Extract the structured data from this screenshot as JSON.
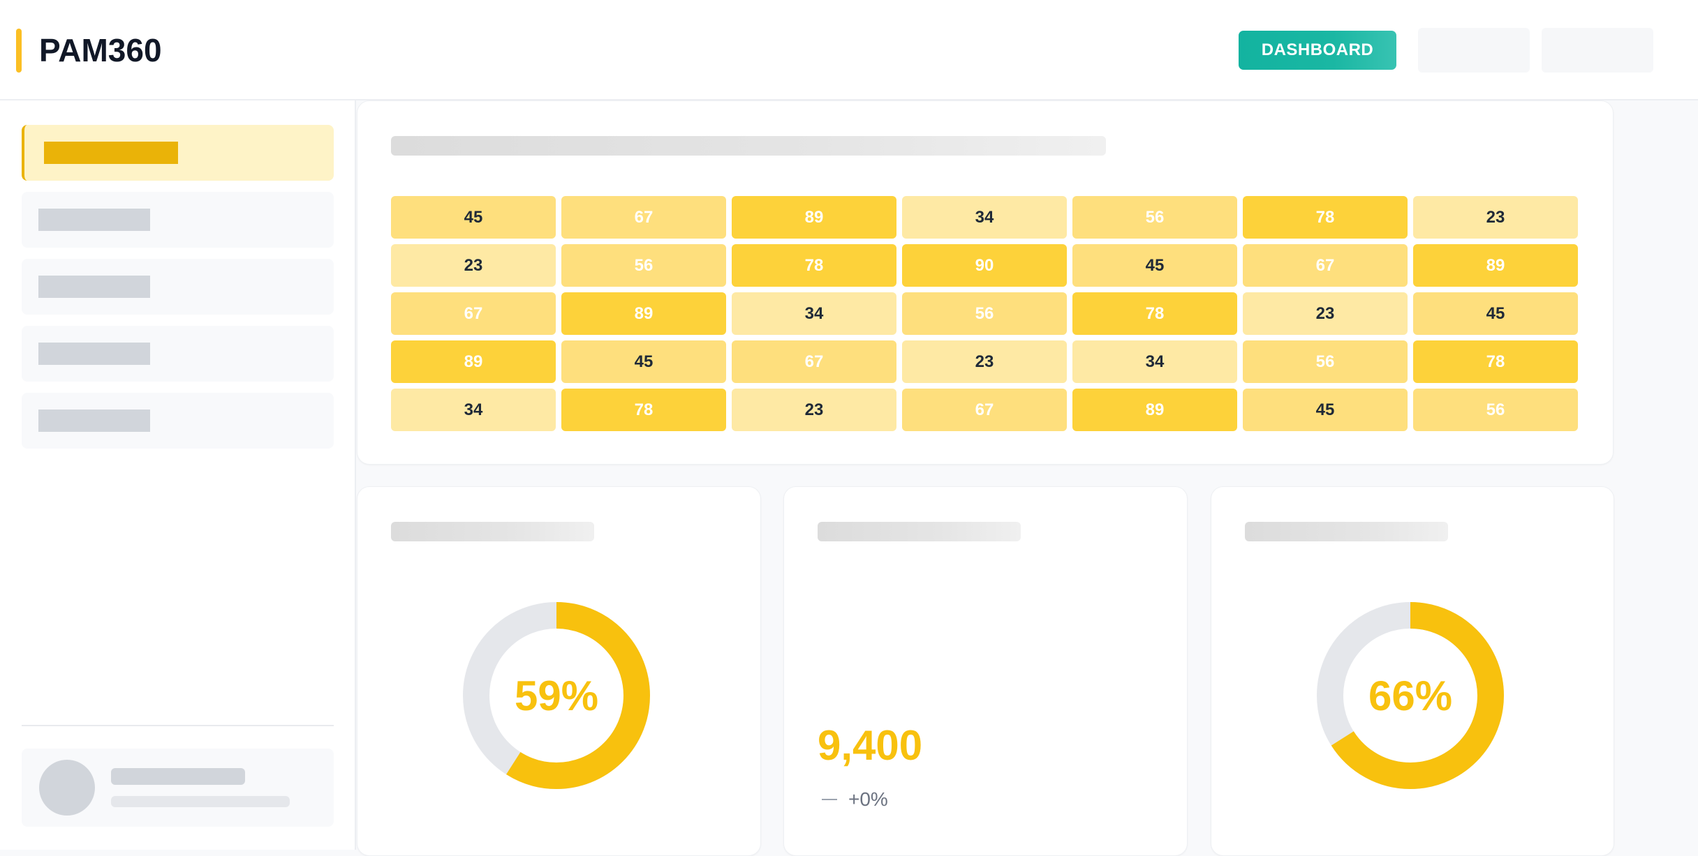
{
  "app": {
    "name": "PAM360",
    "brand_color": "#fbbf24"
  },
  "header": {
    "dashboard_label": "DASHBOARD"
  },
  "colors": {
    "accent": "#f8c10e",
    "heat_low": "#fee9a4",
    "heat_mid": "#fedf7d",
    "heat_high": "#fdd23a",
    "teal": "#13b3a0"
  },
  "heatmap": {
    "rows": [
      [
        45,
        67,
        89,
        34,
        56,
        78,
        23
      ],
      [
        23,
        56,
        78,
        90,
        45,
        67,
        89
      ],
      [
        67,
        89,
        34,
        56,
        78,
        23,
        45
      ],
      [
        89,
        45,
        67,
        23,
        34,
        56,
        78
      ],
      [
        34,
        78,
        23,
        67,
        89,
        45,
        56
      ]
    ]
  },
  "gauges": [
    {
      "label": "59%",
      "value": 0.59
    },
    {
      "label": "66%",
      "value": 0.66
    }
  ],
  "kpi": {
    "value": "9,400",
    "change": "+0%"
  }
}
